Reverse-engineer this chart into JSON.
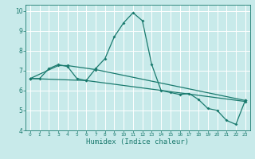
{
  "xlabel": "Humidex (Indice chaleur)",
  "ylabel": "",
  "bg_color": "#c8eaea",
  "grid_color": "#ffffff",
  "line_color": "#1a7a6e",
  "xlim": [
    -0.5,
    23.5
  ],
  "ylim": [
    4,
    10.3
  ],
  "xticks": [
    0,
    1,
    2,
    3,
    4,
    5,
    6,
    7,
    8,
    9,
    10,
    11,
    12,
    13,
    14,
    15,
    16,
    17,
    18,
    19,
    20,
    21,
    22,
    23
  ],
  "yticks": [
    4,
    5,
    6,
    7,
    8,
    9,
    10
  ],
  "series": [
    [
      0,
      6.6
    ],
    [
      1,
      6.6
    ],
    [
      2,
      7.1
    ],
    [
      3,
      7.3
    ],
    [
      4,
      7.2
    ],
    [
      5,
      6.6
    ],
    [
      6,
      6.5
    ],
    [
      7,
      7.1
    ],
    [
      8,
      7.6
    ],
    [
      9,
      8.7
    ],
    [
      10,
      9.4
    ],
    [
      11,
      9.9
    ],
    [
      12,
      9.5
    ],
    [
      13,
      7.3
    ],
    [
      14,
      6.0
    ],
    [
      15,
      5.9
    ],
    [
      16,
      5.8
    ],
    [
      17,
      5.85
    ],
    [
      18,
      5.55
    ],
    [
      19,
      5.1
    ],
    [
      20,
      5.0
    ],
    [
      21,
      4.5
    ],
    [
      22,
      4.3
    ],
    [
      23,
      5.5
    ]
  ],
  "series2": [
    [
      0,
      6.6
    ],
    [
      3,
      7.25
    ],
    [
      4,
      7.25
    ],
    [
      7,
      7.05
    ],
    [
      23,
      5.5
    ]
  ],
  "series3": [
    [
      0,
      6.6
    ],
    [
      6,
      6.5
    ],
    [
      23,
      5.45
    ]
  ]
}
